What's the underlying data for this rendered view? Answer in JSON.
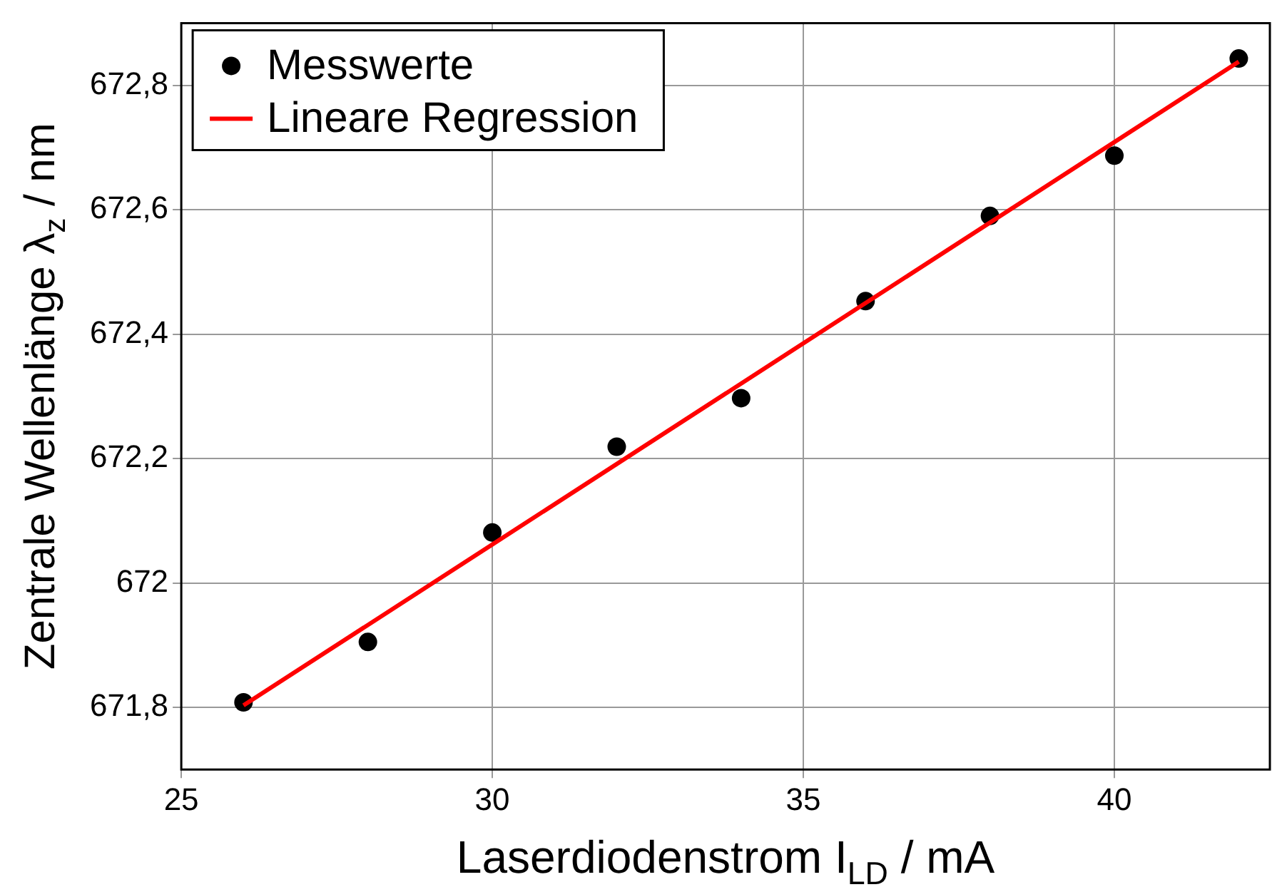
{
  "chart_data": {
    "type": "scatter",
    "xlabel": "Laserdiodenstrom I$_{LD}$ / mA",
    "ylabel": "Zentrale Wellenlänge λ$_{z}$ / nm",
    "xlim": [
      25,
      42.5
    ],
    "xticks": [
      25,
      30,
      35,
      40
    ],
    "ylim": [
      671.7,
      672.9
    ],
    "yticks": [
      {
        "value": 671.8,
        "label": "671,8"
      },
      {
        "value": 672,
        "label": "672"
      },
      {
        "value": 672.2,
        "label": "672,2"
      },
      {
        "value": 672.4,
        "label": "672,4"
      },
      {
        "value": 672.6,
        "label": "672,6"
      },
      {
        "value": 672.8,
        "label": "672,8"
      }
    ],
    "grid": true,
    "legend": "top left",
    "series": [
      {
        "name": "Messwerte",
        "type": "scatter",
        "marker": "circle",
        "color": "#000000",
        "x": [
          26,
          28,
          30,
          32,
          34,
          36,
          38,
          40,
          42
        ],
        "values": [
          671.808,
          671.905,
          672.081,
          672.219,
          672.297,
          672.453,
          672.59,
          672.687,
          672.843
        ]
      },
      {
        "name": "Lineare Regression",
        "type": "line",
        "marker": "none",
        "color": "#ff0000",
        "x": [
          26,
          42
        ],
        "values": [
          671.803,
          672.838
        ]
      }
    ]
  }
}
